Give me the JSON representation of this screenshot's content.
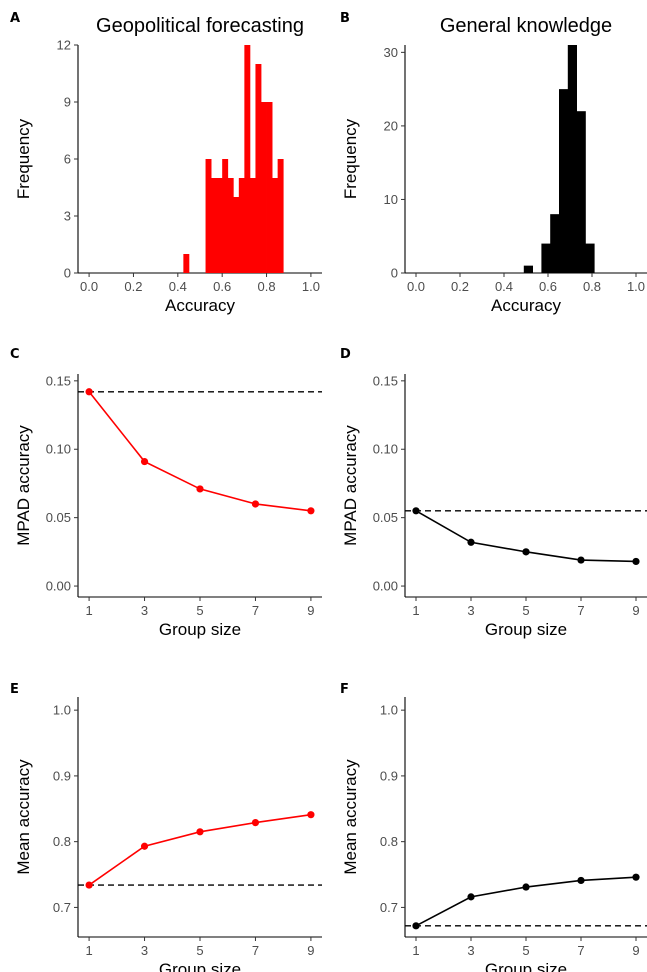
{
  "colors": {
    "red": "#ff0000",
    "black": "#000000"
  },
  "chart_data": [
    {
      "id": "A",
      "type": "bar",
      "letter": "A",
      "title": "Geopolitical forecasting",
      "xlabel": "Accuracy",
      "ylabel": "Frequency",
      "xlim": [
        -0.05,
        1.05
      ],
      "ylim": [
        0,
        12
      ],
      "xticks": [
        "0.0",
        "0.2",
        "0.4",
        "0.6",
        "0.8",
        "1.0"
      ],
      "yticks": [
        "0",
        "3",
        "6",
        "9",
        "12"
      ],
      "bin_width": 0.025,
      "color": "red",
      "bins": [
        {
          "x": 0.425,
          "count": 1
        },
        {
          "x": 0.525,
          "count": 6
        },
        {
          "x": 0.55,
          "count": 5
        },
        {
          "x": 0.575,
          "count": 5
        },
        {
          "x": 0.6,
          "count": 6
        },
        {
          "x": 0.625,
          "count": 5
        },
        {
          "x": 0.65,
          "count": 4
        },
        {
          "x": 0.675,
          "count": 5
        },
        {
          "x": 0.7,
          "count": 12
        },
        {
          "x": 0.725,
          "count": 5
        },
        {
          "x": 0.75,
          "count": 11
        },
        {
          "x": 0.775,
          "count": 9
        },
        {
          "x": 0.8,
          "count": 9
        },
        {
          "x": 0.825,
          "count": 5
        },
        {
          "x": 0.85,
          "count": 6
        }
      ]
    },
    {
      "id": "B",
      "type": "bar",
      "letter": "B",
      "title": "General knowledge",
      "xlabel": "Accuracy",
      "ylabel": "Frequency",
      "xlim": [
        -0.05,
        1.05
      ],
      "ylim": [
        0,
        31
      ],
      "xticks": [
        "0.0",
        "0.2",
        "0.4",
        "0.6",
        "0.8",
        "1.0"
      ],
      "yticks": [
        "0",
        "10",
        "20",
        "30"
      ],
      "bin_width": 0.04,
      "color": "black",
      "bins": [
        {
          "x": 0.49,
          "count": 1
        },
        {
          "x": 0.57,
          "count": 4
        },
        {
          "x": 0.61,
          "count": 8
        },
        {
          "x": 0.65,
          "count": 25
        },
        {
          "x": 0.69,
          "count": 31
        },
        {
          "x": 0.73,
          "count": 22
        },
        {
          "x": 0.77,
          "count": 4
        }
      ]
    },
    {
      "id": "C",
      "type": "line",
      "letter": "C",
      "xlabel": "Group size",
      "ylabel": "MPAD accuracy",
      "xlim": [
        0.6,
        9.4
      ],
      "ylim": [
        -0.008,
        0.155
      ],
      "xticks": [
        "1",
        "3",
        "5",
        "7",
        "9"
      ],
      "yticks": [
        "0.00",
        "0.05",
        "0.10",
        "0.15"
      ],
      "color": "red",
      "reference_line": 0.142,
      "x": [
        1,
        3,
        5,
        7,
        9
      ],
      "y": [
        0.142,
        0.091,
        0.071,
        0.06,
        0.055
      ]
    },
    {
      "id": "D",
      "type": "line",
      "letter": "D",
      "xlabel": "Group size",
      "ylabel": "MPAD accuracy",
      "xlim": [
        0.6,
        9.4
      ],
      "ylim": [
        -0.008,
        0.155
      ],
      "xticks": [
        "1",
        "3",
        "5",
        "7",
        "9"
      ],
      "yticks": [
        "0.00",
        "0.05",
        "0.10",
        "0.15"
      ],
      "color": "black",
      "reference_line": 0.055,
      "x": [
        1,
        3,
        5,
        7,
        9
      ],
      "y": [
        0.055,
        0.032,
        0.025,
        0.019,
        0.018
      ]
    },
    {
      "id": "E",
      "type": "line",
      "letter": "E",
      "xlabel": "Group size",
      "ylabel": "Mean accuracy",
      "xlim": [
        0.6,
        9.4
      ],
      "ylim": [
        0.655,
        1.02
      ],
      "xticks": [
        "1",
        "3",
        "5",
        "7",
        "9"
      ],
      "yticks": [
        "0.7",
        "0.8",
        "0.9",
        "1.0"
      ],
      "color": "red",
      "reference_line": 0.734,
      "x": [
        1,
        3,
        5,
        7,
        9
      ],
      "y": [
        0.734,
        0.793,
        0.815,
        0.829,
        0.841
      ]
    },
    {
      "id": "F",
      "type": "line",
      "letter": "F",
      "xlabel": "Group size",
      "ylabel": "Mean accuracy",
      "xlim": [
        0.6,
        9.4
      ],
      "ylim": [
        0.655,
        1.02
      ],
      "xticks": [
        "1",
        "3",
        "5",
        "7",
        "9"
      ],
      "yticks": [
        "0.7",
        "0.8",
        "0.9",
        "1.0"
      ],
      "color": "black",
      "reference_line": 0.672,
      "x": [
        1,
        3,
        5,
        7,
        9
      ],
      "y": [
        0.672,
        0.716,
        0.731,
        0.741,
        0.746
      ]
    }
  ]
}
